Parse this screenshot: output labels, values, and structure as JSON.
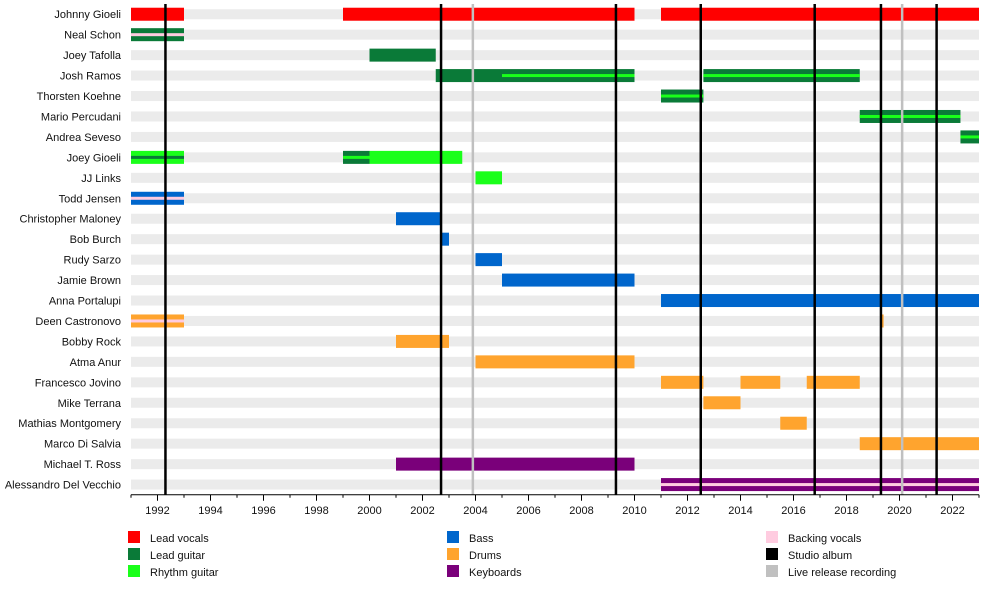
{
  "chart_data": {
    "type": "timeline",
    "x_range": [
      1991,
      2023
    ],
    "x_ticks": [
      1992,
      1994,
      1996,
      1998,
      2000,
      2002,
      2004,
      2006,
      2008,
      2010,
      2012,
      2014,
      2016,
      2018,
      2020,
      2022
    ],
    "colors": {
      "lead_vocals": "#ff0000",
      "lead_guitar": "#0a7a38",
      "rhythm_guitar": "#1aff1a",
      "bass": "#0066cc",
      "drums": "#ffa42e",
      "keyboards": "#7a007a",
      "backing_vocals": "#ffcce0",
      "studio_album": "#000000",
      "live_release": "#c0c0c0"
    },
    "members": [
      {
        "name": "Johnny Gioeli",
        "spans": [
          {
            "start": 1991,
            "end": 1993,
            "role": "lead_vocals"
          },
          {
            "start": 1999,
            "end": 2010,
            "role": "lead_vocals"
          },
          {
            "start": 2011,
            "end": 2023,
            "role": "lead_vocals"
          }
        ]
      },
      {
        "name": "Neal Schon",
        "spans": [
          {
            "start": 1991,
            "end": 1993,
            "role": "lead_guitar",
            "inner": "backing_vocals"
          }
        ]
      },
      {
        "name": "Joey Tafolla",
        "spans": [
          {
            "start": 2000,
            "end": 2002.5,
            "role": "lead_guitar"
          }
        ]
      },
      {
        "name": "Josh Ramos",
        "spans": [
          {
            "start": 2002.5,
            "end": 2005,
            "role": "lead_guitar"
          },
          {
            "start": 2005,
            "end": 2010,
            "role": "lead_guitar",
            "inner": "rhythm_guitar"
          },
          {
            "start": 2012.6,
            "end": 2018.5,
            "role": "lead_guitar",
            "inner": "rhythm_guitar"
          }
        ]
      },
      {
        "name": "Thorsten Koehne",
        "spans": [
          {
            "start": 2011,
            "end": 2012.6,
            "role": "lead_guitar",
            "inner": "rhythm_guitar"
          }
        ]
      },
      {
        "name": "Mario Percudani",
        "spans": [
          {
            "start": 2018.5,
            "end": 2022.3,
            "role": "lead_guitar",
            "inner": "rhythm_guitar"
          }
        ]
      },
      {
        "name": "Andrea Seveso",
        "spans": [
          {
            "start": 2022.3,
            "end": 2023,
            "role": "lead_guitar",
            "inner": "rhythm_guitar"
          }
        ]
      },
      {
        "name": "Joey Gioeli",
        "spans": [
          {
            "start": 1991,
            "end": 1993,
            "role": "rhythm_guitar",
            "inner": "lead_guitar"
          },
          {
            "start": 1999,
            "end": 2000,
            "role": "lead_guitar",
            "inner": "rhythm_guitar"
          },
          {
            "start": 2000,
            "end": 2003.5,
            "role": "rhythm_guitar"
          }
        ]
      },
      {
        "name": "JJ Links",
        "spans": [
          {
            "start": 2004,
            "end": 2005,
            "role": "rhythm_guitar"
          }
        ]
      },
      {
        "name": "Todd Jensen",
        "spans": [
          {
            "start": 1991,
            "end": 1993,
            "role": "bass",
            "inner": "backing_vocals"
          }
        ]
      },
      {
        "name": "Christopher Maloney",
        "spans": [
          {
            "start": 2001,
            "end": 2002.7,
            "role": "bass"
          }
        ]
      },
      {
        "name": "Bob Burch",
        "spans": [
          {
            "start": 2002.7,
            "end": 2003,
            "role": "bass"
          }
        ]
      },
      {
        "name": "Rudy Sarzo",
        "spans": [
          {
            "start": 2004,
            "end": 2005,
            "role": "bass"
          }
        ]
      },
      {
        "name": "Jamie Brown",
        "spans": [
          {
            "start": 2005,
            "end": 2010,
            "role": "bass"
          }
        ]
      },
      {
        "name": "Anna Portalupi",
        "spans": [
          {
            "start": 2011,
            "end": 2023,
            "role": "bass"
          }
        ]
      },
      {
        "name": "Deen Castronovo",
        "spans": [
          {
            "start": 1991,
            "end": 1993,
            "role": "drums",
            "inner": "backing_vocals"
          },
          {
            "start": 2019.3,
            "end": 2019.4,
            "role": "drums"
          }
        ]
      },
      {
        "name": "Bobby Rock",
        "spans": [
          {
            "start": 2001,
            "end": 2003,
            "role": "drums"
          }
        ]
      },
      {
        "name": "Atma Anur",
        "spans": [
          {
            "start": 2004,
            "end": 2010,
            "role": "drums"
          }
        ]
      },
      {
        "name": "Francesco Jovino",
        "spans": [
          {
            "start": 2011,
            "end": 2012.6,
            "role": "drums"
          },
          {
            "start": 2014,
            "end": 2015.5,
            "role": "drums"
          },
          {
            "start": 2016.5,
            "end": 2018.5,
            "role": "drums"
          }
        ]
      },
      {
        "name": "Mike Terrana",
        "spans": [
          {
            "start": 2012.6,
            "end": 2014,
            "role": "drums"
          }
        ]
      },
      {
        "name": "Mathias Montgomery",
        "spans": [
          {
            "start": 2015.5,
            "end": 2016.5,
            "role": "drums"
          }
        ]
      },
      {
        "name": "Marco Di Salvia",
        "spans": [
          {
            "start": 2018.5,
            "end": 2023,
            "role": "drums"
          }
        ]
      },
      {
        "name": "Michael T. Ross",
        "spans": [
          {
            "start": 2001,
            "end": 2010,
            "role": "keyboards"
          }
        ]
      },
      {
        "name": "Alessandro Del Vecchio",
        "spans": [
          {
            "start": 2011,
            "end": 2023,
            "role": "keyboards",
            "inner": "backing_vocals"
          }
        ]
      }
    ],
    "studio_albums": [
      1992.3,
      2002.7,
      2009.3,
      2012.5,
      2016.8,
      2019.3,
      2021.4
    ],
    "live_releases": [
      2003.9,
      2020.1
    ],
    "legend": [
      {
        "label": "Lead vocals",
        "role": "lead_vocals"
      },
      {
        "label": "Lead guitar",
        "role": "lead_guitar"
      },
      {
        "label": "Rhythm guitar",
        "role": "rhythm_guitar"
      },
      {
        "label": "Bass",
        "role": "bass"
      },
      {
        "label": "Drums",
        "role": "drums"
      },
      {
        "label": "Keyboards",
        "role": "keyboards"
      },
      {
        "label": "Backing vocals",
        "role": "backing_vocals"
      },
      {
        "label": "Studio album",
        "role": "studio_album"
      },
      {
        "label": "Live release recording",
        "role": "live_release"
      }
    ]
  }
}
